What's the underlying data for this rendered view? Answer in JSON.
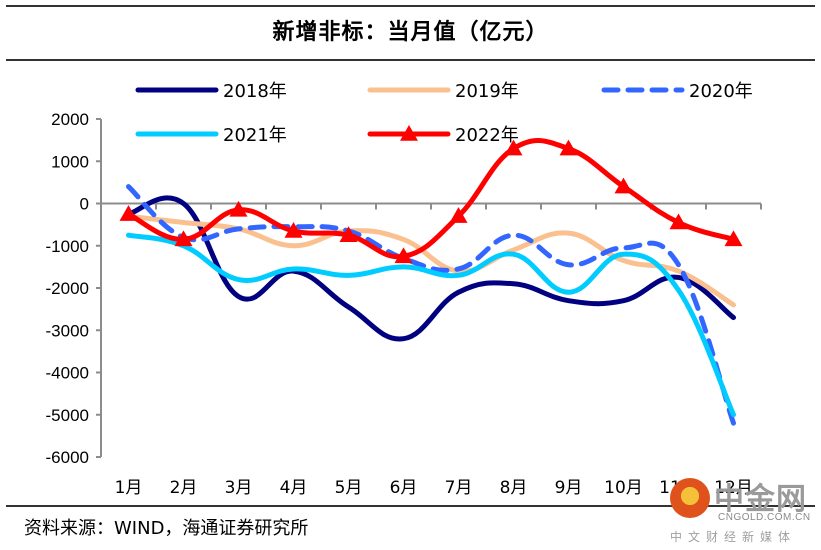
{
  "chart_data": {
    "type": "line",
    "title": "新增非标：当月值（亿元）",
    "xlabel": "",
    "ylabel": "",
    "categories": [
      "1月",
      "2月",
      "3月",
      "4月",
      "5月",
      "6月",
      "7月",
      "8月",
      "9月",
      "10月",
      "11月",
      "12月"
    ],
    "ylim": [
      -6000,
      2000
    ],
    "yticks": [
      2000,
      1000,
      0,
      -1000,
      -2000,
      -3000,
      -4000,
      -5000,
      -6000
    ],
    "grid": false,
    "legend_position": "top",
    "series": [
      {
        "name": "2018年",
        "color": "#000080",
        "style": "solid",
        "marker": "none",
        "values": [
          -250,
          0,
          -2200,
          -1600,
          -2450,
          -3200,
          -2100,
          -1900,
          -2300,
          -2300,
          -1750,
          -2700
        ]
      },
      {
        "name": "2019年",
        "color": "#FAC090",
        "style": "solid",
        "marker": "none",
        "values": [
          -300,
          -450,
          -600,
          -1000,
          -650,
          -850,
          -1600,
          -1100,
          -700,
          -1350,
          -1600,
          -2400
        ]
      },
      {
        "name": "2020年",
        "color": "#3366FF",
        "style": "dashed",
        "marker": "none",
        "values": [
          400,
          -800,
          -600,
          -550,
          -650,
          -1300,
          -1550,
          -750,
          -1450,
          -1050,
          -1450,
          -5200
        ]
      },
      {
        "name": "2021年",
        "color": "#00CCFF",
        "style": "solid",
        "marker": "none",
        "values": [
          -750,
          -1000,
          -1800,
          -1550,
          -1700,
          -1500,
          -1700,
          -1200,
          -2100,
          -1200,
          -2050,
          -5000
        ]
      },
      {
        "name": "2022年",
        "color": "#FF0000",
        "style": "solid",
        "marker": "triangle",
        "values": [
          -250,
          -850,
          -150,
          -650,
          -750,
          -1250,
          -300,
          1300,
          1300,
          400,
          -450,
          -850
        ]
      }
    ]
  },
  "source": "资料来源：WIND，海通证券研究所",
  "watermark": {
    "name": "中金网",
    "domain": "CNGOLD.COM.CN",
    "tagline": "中文财经新媒体"
  }
}
